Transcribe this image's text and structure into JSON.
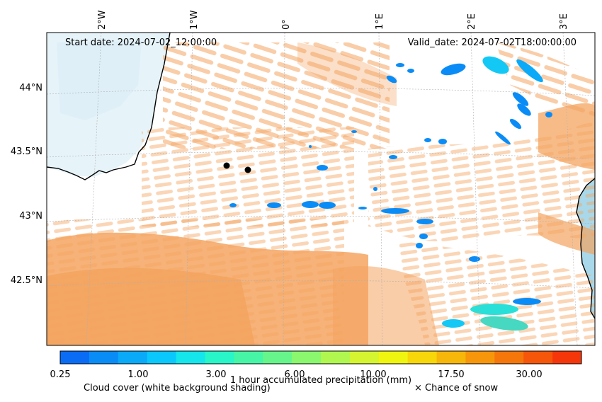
{
  "map": {
    "start_label": "Start date: 2024-07-02_12:00:00",
    "valid_label": "Valid_date: 2024-07-02T18:00:00.00",
    "lon_labels": [
      "2°W",
      "1°W",
      "0°",
      "1°E",
      "2°E",
      "3°E"
    ],
    "lat_labels": [
      "44°N",
      "43.5°N",
      "43°N",
      "42.5°N"
    ],
    "colors": {
      "cloud": "#f4a460",
      "sea": "#dff0f8",
      "coast": "#000000"
    }
  },
  "colorbar": {
    "ticks": [
      "0.25",
      "1.00",
      "3.00",
      "6.00",
      "10.00",
      "17.50",
      "30.00"
    ],
    "title": "1 hour accumulated precipitation (mm)",
    "colors": [
      "#0a6cf5",
      "#0a8cf7",
      "#0aaaf9",
      "#0ac8fb",
      "#14e6ec",
      "#28f5c8",
      "#46f5a6",
      "#66f58a",
      "#8af76e",
      "#b0f750",
      "#d4f530",
      "#f0f50f",
      "#f7d60a",
      "#f7b60a",
      "#f7960a",
      "#f5760a",
      "#f5560a",
      "#f5360a"
    ]
  },
  "legend": {
    "cloud_cover": "Cloud cover (white background shading)",
    "snow": "× Chance of snow"
  }
}
